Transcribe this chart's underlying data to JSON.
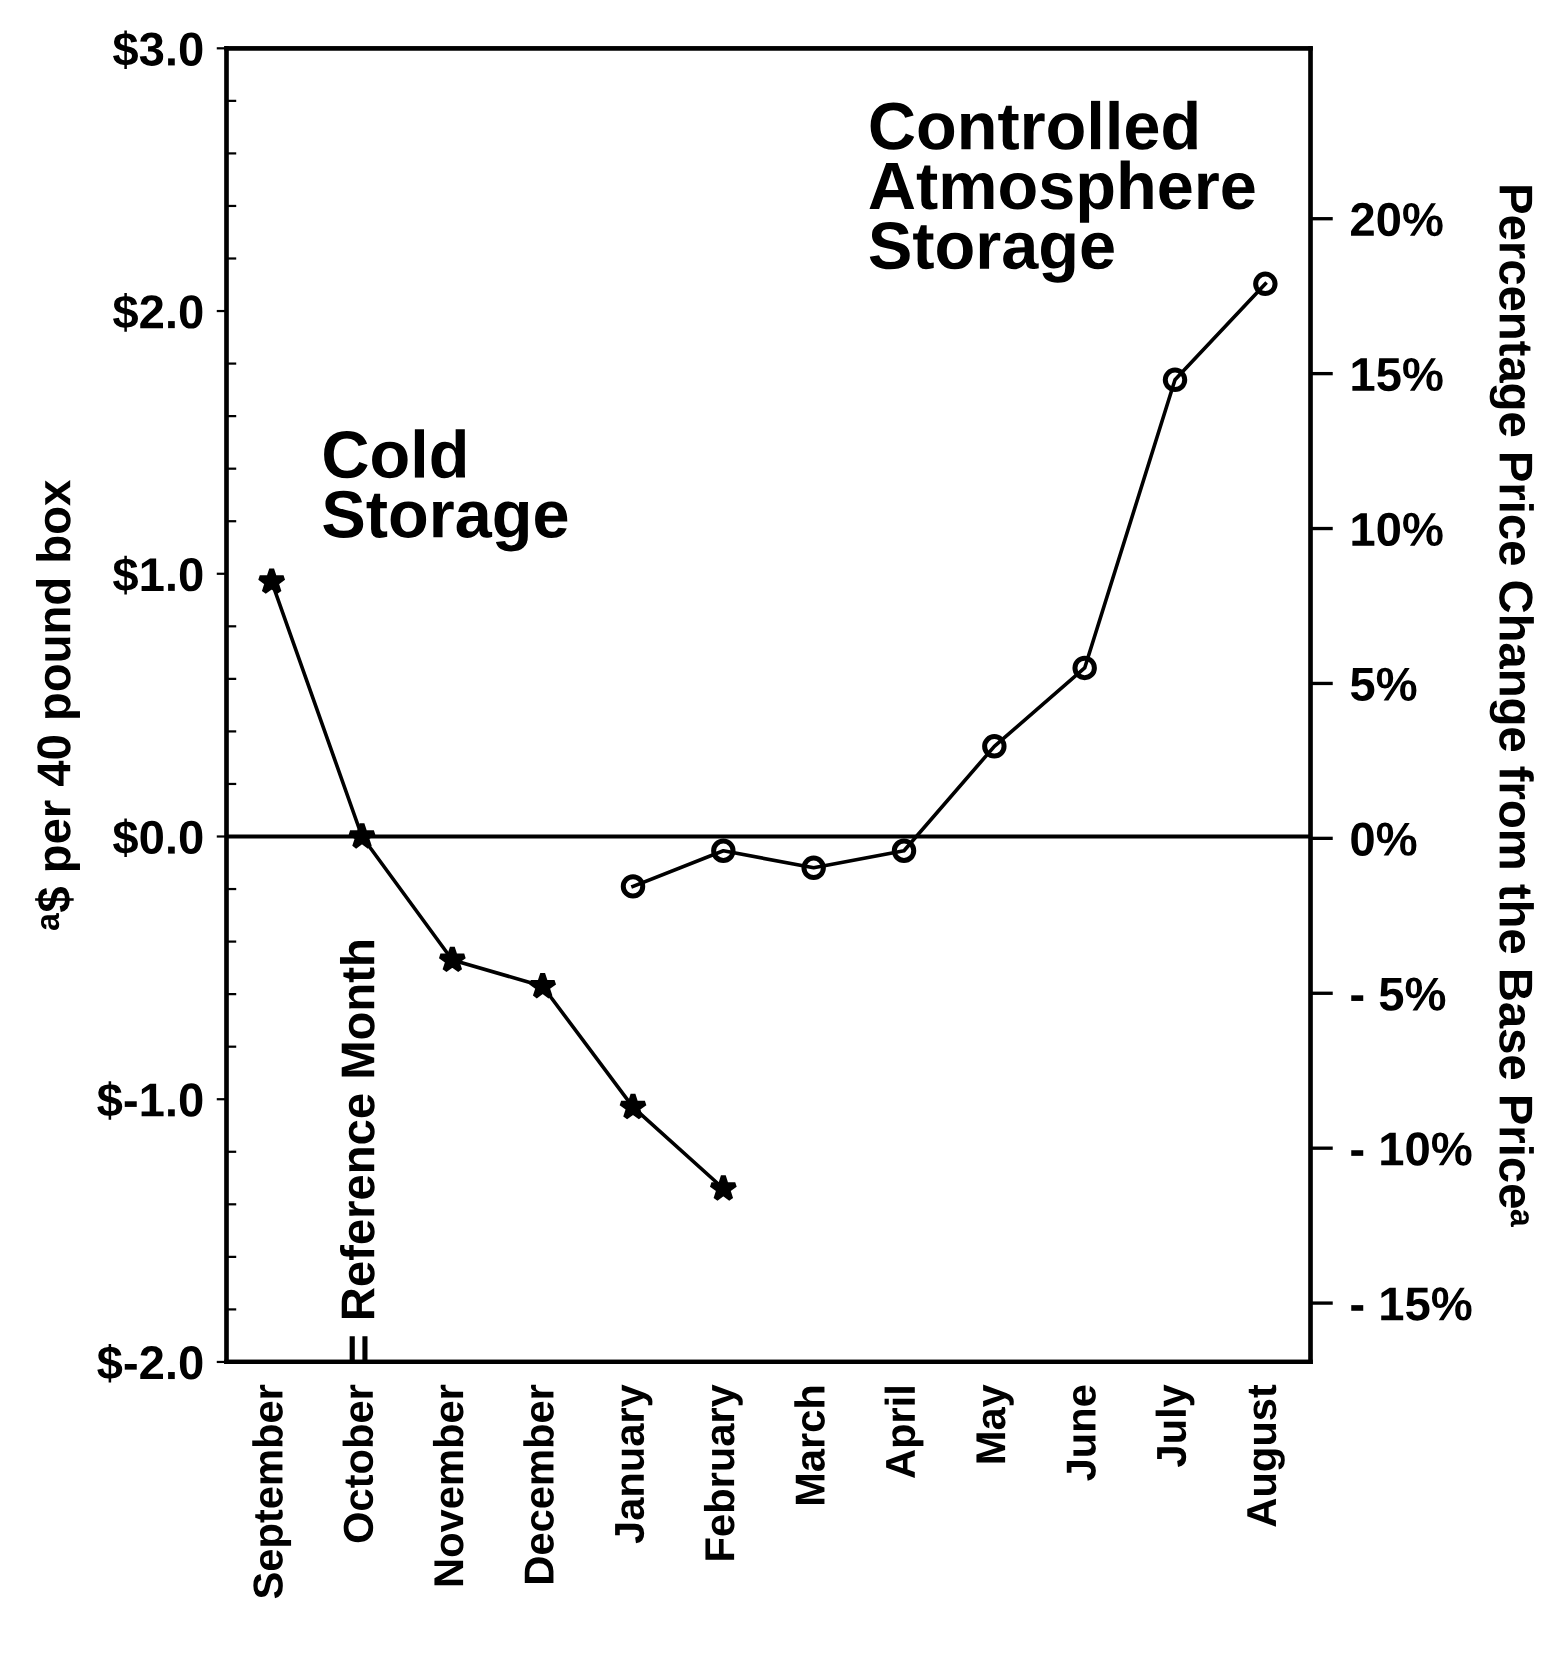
{
  "chart_data": {
    "type": "line",
    "categories": [
      "September",
      "October",
      "November",
      "December",
      "January",
      "February",
      "March",
      "April",
      "May",
      "June",
      "July",
      "August"
    ],
    "series": [
      {
        "color": "#000000",
        "marker": "star",
        "values": [
          0.97,
          0,
          -0.47,
          -0.57,
          -1.03,
          -1.34,
          null,
          null,
          null,
          null,
          null,
          null
        ]
      },
      {
        "color": "#000000",
        "marker": "circle",
        "axis": "y2",
        "values": [
          null,
          null,
          null,
          null,
          -1.55,
          -0.4,
          -0.95,
          -0.4,
          2.97,
          5.5,
          14.8,
          17.9
        ]
      }
    ],
    "ylabel": "ᵃ$ per 40 pound box",
    "y2label": "Percentage Price Change from the Base Priceᵃ",
    "ylim": [
      -2.0,
      3.0
    ],
    "yticks": [
      {
        "value": -2.0,
        "label": "$-2.0"
      },
      {
        "value": -1.8,
        "label": null
      },
      {
        "value": -1.6,
        "label": null
      },
      {
        "value": -1.4,
        "label": null
      },
      {
        "value": -1.2,
        "label": null
      },
      {
        "value": -1.0,
        "label": "$-1.0"
      },
      {
        "value": -0.8,
        "label": null
      },
      {
        "value": -0.6,
        "label": null
      },
      {
        "value": -0.4,
        "label": null
      },
      {
        "value": -0.2,
        "label": null
      },
      {
        "value": 0.0,
        "label": "$0.0"
      },
      {
        "value": 0.2,
        "label": null
      },
      {
        "value": 0.4,
        "label": null
      },
      {
        "value": 0.6,
        "label": null
      },
      {
        "value": 0.8,
        "label": null
      },
      {
        "value": 1.0,
        "label": "$1.0"
      },
      {
        "value": 1.2,
        "label": null
      },
      {
        "value": 1.4,
        "label": null
      },
      {
        "value": 1.6,
        "label": null
      },
      {
        "value": 1.8,
        "label": null
      },
      {
        "value": 2.0,
        "label": "$2.0"
      },
      {
        "value": 2.2,
        "label": null
      },
      {
        "value": 2.4,
        "label": null
      },
      {
        "value": 2.6,
        "label": null
      },
      {
        "value": 2.8,
        "label": null
      },
      {
        "value": 3.0,
        "label": "$3.0"
      }
    ],
    "y2lim": [
      -16.9,
      25.5
    ],
    "y2ticks": [
      {
        "value": -15,
        "label": "- 15%"
      },
      {
        "value": -10,
        "label": "- 10%"
      },
      {
        "value": -5,
        "label": "- 5%"
      },
      {
        "value": 0,
        "label": "0%"
      },
      {
        "value": 5,
        "label": "5%"
      },
      {
        "value": 10,
        "label": "10%"
      },
      {
        "value": 15,
        "label": "15%"
      },
      {
        "value": 20,
        "label": "20%"
      }
    ],
    "ref_lines": [
      {
        "axis": "y",
        "value": 0,
        "color": "#000000",
        "line_style": "solid"
      }
    ],
    "annotations": [
      "Cold\nStorage",
      "Controlled\nAtmosphere\nStorage",
      "= Reference Month"
    ],
    "grid": false,
    "legend": false,
    "line_style": "solid"
  }
}
